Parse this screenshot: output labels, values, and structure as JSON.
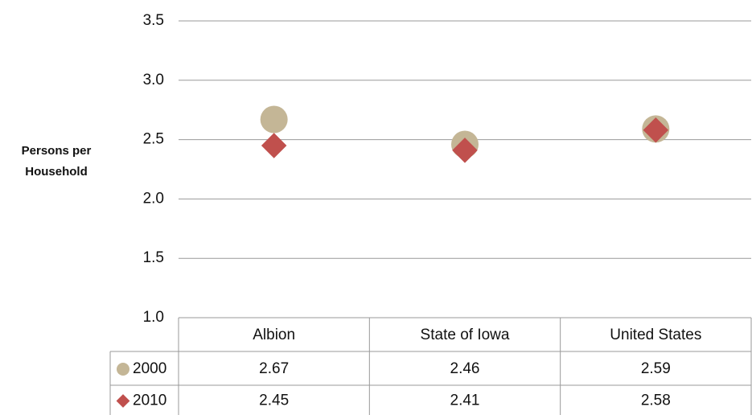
{
  "chart_data": {
    "type": "point",
    "y_label": "Persons per Household",
    "categories": [
      "Albion",
      "State of Iowa",
      "United States"
    ],
    "series": [
      {
        "name": "2000",
        "color": "#c4b696",
        "marker": "circle",
        "values": [
          2.67,
          2.46,
          2.59
        ]
      },
      {
        "name": "2010",
        "color": "#c0504d",
        "marker": "diamond",
        "values": [
          2.45,
          2.41,
          2.58
        ]
      }
    ],
    "ylim": [
      1,
      3.5
    ],
    "yticks": [
      {
        "value": 1,
        "label": "1.0"
      },
      1.5,
      {
        "value": 2,
        "label": "2.0"
      },
      2.5,
      {
        "value": 3,
        "label": "3.0"
      },
      3.5
    ],
    "grid": true,
    "data_table": true
  }
}
